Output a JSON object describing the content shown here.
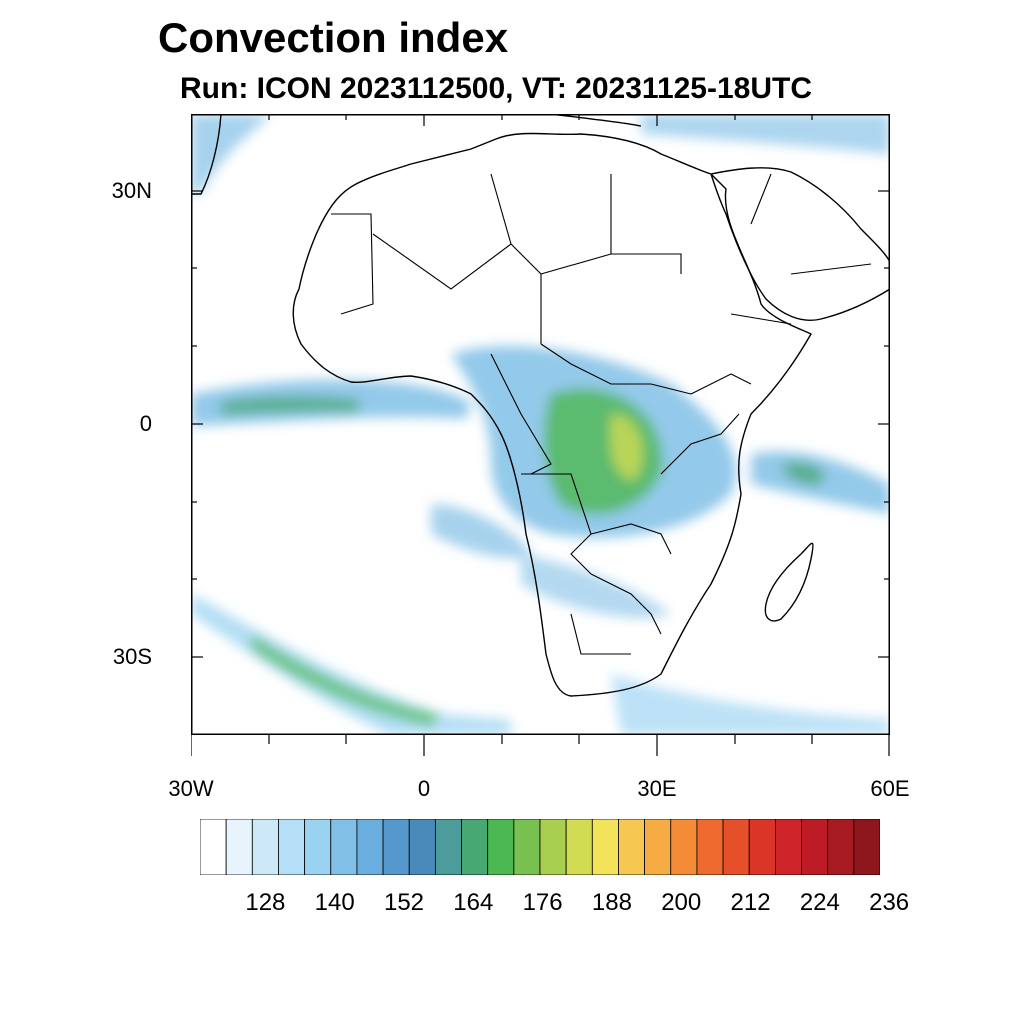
{
  "title": "Convection index",
  "subtitle": "Run: ICON 2023112500,  VT: 20231125-18UTC",
  "map": {
    "lon_range": [
      -30,
      60
    ],
    "lat_range": [
      -40,
      40
    ],
    "y_ticks": [
      {
        "label": "30N",
        "lat": 30
      },
      {
        "label": "0",
        "lat": 0
      },
      {
        "label": "30S",
        "lat": -30
      }
    ],
    "x_ticks": [
      {
        "label": "30W",
        "lon": -30
      },
      {
        "label": "0",
        "lon": 0
      },
      {
        "label": "30E",
        "lon": 30
      },
      {
        "label": "60E",
        "lon": 60
      }
    ]
  },
  "colorbar": {
    "colors": [
      "#ffffff",
      "#e8f4fb",
      "#cde8f7",
      "#b5dff6",
      "#9ad3f2",
      "#80bfe6",
      "#6aaedf",
      "#5598cd",
      "#4a8aba",
      "#4b9c9a",
      "#48a873",
      "#4cb851",
      "#78c04f",
      "#a8cf4f",
      "#d2dc52",
      "#f2e35a",
      "#f7c851",
      "#f7ab45",
      "#f48c37",
      "#ee6a2e",
      "#e5502a",
      "#db3528",
      "#cf2429",
      "#bd1c26",
      "#a81a22",
      "#8e171d"
    ],
    "labels": [
      "128",
      "140",
      "152",
      "164",
      "176",
      "188",
      "200",
      "212",
      "224",
      "236"
    ]
  }
}
